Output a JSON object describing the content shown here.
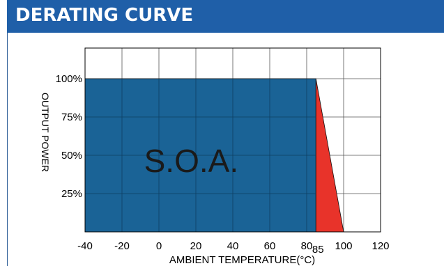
{
  "header": {
    "title": "DERATING CURVE",
    "background": "#1f5fa8",
    "text_color": "#ffffff"
  },
  "chart_data": {
    "type": "area",
    "title": "DERATING CURVE",
    "xlabel": "AMBIENT TEMPERATURE(°C)",
    "ylabel": "OUTPUT POWER",
    "xlim": [
      -40,
      120
    ],
    "ylim": [
      0,
      120
    ],
    "grid": true,
    "x_ticks": [
      -40,
      -20,
      0,
      20,
      40,
      60,
      80,
      100,
      120
    ],
    "x_tick_labels": [
      "-40",
      "-20",
      "0",
      "20",
      "40",
      "60",
      "80",
      "100",
      "120"
    ],
    "x_extra_tick": {
      "value": 85,
      "label": "85"
    },
    "y_ticks": [
      25,
      50,
      75,
      100
    ],
    "y_tick_labels": [
      "25%",
      "50%",
      "75%",
      "100%"
    ],
    "series": [
      {
        "values": [
          {
            "x": -40,
            "y": 100
          },
          {
            "x": 85,
            "y": 100
          },
          {
            "x": 85,
            "y": 0
          },
          {
            "x": -40,
            "y": 0
          }
        ],
        "color": "#1a6396"
      },
      {
        "values": [
          {
            "x": 85,
            "y": 100
          },
          {
            "x": 100,
            "y": 0
          },
          {
            "x": 85,
            "y": 0
          }
        ],
        "color": "#e8332a"
      }
    ],
    "annotation": "S.O.A."
  }
}
